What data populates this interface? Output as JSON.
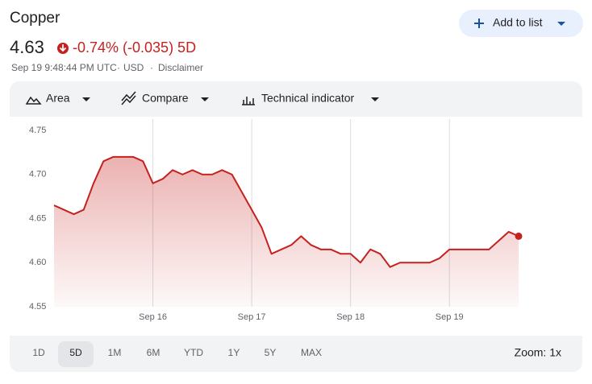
{
  "header": {
    "title": "Copper",
    "price": "4.63",
    "change": "-0.74% (-0.035) 5D",
    "timestamp": "Sep 19 9:48:44 PM UTC",
    "currency": "USD",
    "disclaimer": "Disclaimer",
    "add_button": "Add to list"
  },
  "toolbar": {
    "area": "Area",
    "compare": "Compare",
    "indicator": "Technical indicator"
  },
  "chart_data": {
    "type": "line",
    "categories": [
      null,
      null,
      null,
      null,
      null,
      null,
      null,
      null,
      null,
      null,
      "Sep 16",
      null,
      null,
      null,
      null,
      null,
      null,
      null,
      null,
      null,
      "Sep 17",
      null,
      null,
      null,
      null,
      null,
      null,
      null,
      null,
      null,
      "Sep 18",
      null,
      null,
      null,
      null,
      null,
      null,
      null,
      null,
      null,
      "Sep 19",
      null,
      null,
      null,
      null,
      null,
      null,
      null
    ],
    "series": [
      {
        "name": "Copper",
        "color": "#c5221f",
        "values": [
          4.665,
          4.66,
          4.655,
          4.66,
          4.69,
          4.715,
          4.72,
          4.72,
          4.72,
          4.715,
          4.69,
          4.695,
          4.705,
          4.7,
          4.705,
          4.7,
          4.7,
          4.705,
          4.7,
          4.68,
          4.66,
          4.64,
          4.61,
          4.615,
          4.62,
          4.63,
          4.62,
          4.615,
          4.615,
          4.61,
          4.61,
          4.6,
          4.615,
          4.61,
          4.595,
          4.6,
          4.6,
          4.6,
          4.6,
          4.605,
          4.615,
          4.615,
          4.615,
          4.615,
          4.615,
          4.625,
          4.635,
          4.63
        ]
      }
    ],
    "ylim": [
      4.55,
      4.75
    ],
    "yticks": [
      4.55,
      {
        "value": 4.6,
        "label": "4.60"
      },
      4.65,
      {
        "value": 4.7,
        "label": "4.70"
      },
      4.75
    ]
  },
  "ranges": [
    "1D",
    "5D",
    "1M",
    "6M",
    "YTD",
    "1Y",
    "5Y",
    "MAX"
  ],
  "zoom": "Zoom: 1x"
}
